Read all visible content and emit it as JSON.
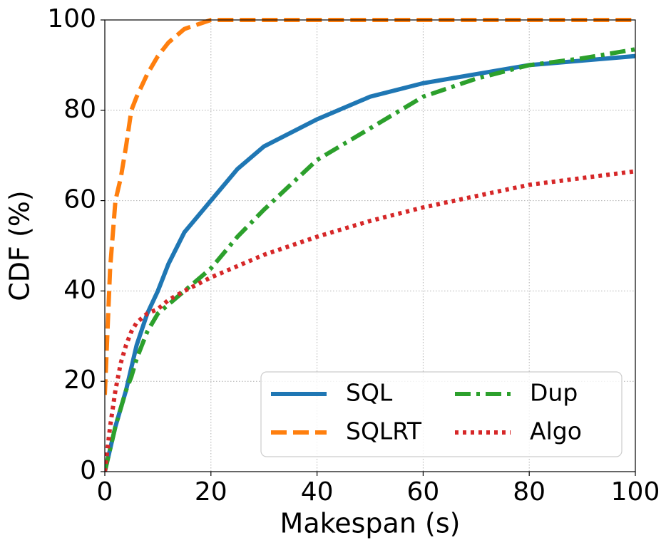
{
  "chart_data": {
    "type": "line",
    "xlabel": "Makespan (s)",
    "ylabel": "CDF (%)",
    "x": [
      0,
      1,
      2,
      3,
      4,
      5,
      6,
      8,
      10,
      12,
      15,
      20,
      25,
      30,
      40,
      50,
      60,
      70,
      80,
      90,
      100
    ],
    "series": [
      {
        "name": "SQL",
        "color": "#1f77b4",
        "style": "solid",
        "values": [
          0,
          5,
          10,
          14,
          18,
          23,
          28,
          35,
          40,
          46,
          53,
          60,
          67,
          72,
          78,
          83,
          86,
          88,
          90,
          91,
          92
        ]
      },
      {
        "name": "SQLRT",
        "color": "#ff7f0e",
        "style": "dashed",
        "values": [
          17,
          45,
          60,
          65,
          72,
          80,
          83,
          88,
          92,
          95,
          98,
          100,
          100,
          100,
          100,
          100,
          100,
          100,
          100,
          100,
          100
        ]
      },
      {
        "name": "Dup",
        "color": "#2ca02c",
        "style": "dashdot",
        "values": [
          0,
          5,
          10,
          14,
          18,
          21,
          25,
          31,
          35,
          37,
          40,
          45,
          52,
          58,
          69,
          76,
          83,
          87,
          90,
          91.5,
          93.5
        ]
      },
      {
        "name": "Algo",
        "color": "#d62728",
        "style": "dotted",
        "values": [
          0,
          10,
          18,
          24,
          28,
          31,
          33,
          35,
          36,
          38,
          40,
          43,
          45.5,
          48,
          52,
          55.5,
          58.5,
          61,
          63.5,
          65,
          66.5
        ]
      }
    ],
    "xlim": [
      0,
      100
    ],
    "ylim": [
      0,
      100
    ],
    "xticks": [
      0,
      20,
      40,
      60,
      80,
      100
    ],
    "yticks": [
      0,
      20,
      40,
      60,
      80,
      100
    ],
    "grid": true,
    "legend": "lower right",
    "legend_columns": 2
  }
}
